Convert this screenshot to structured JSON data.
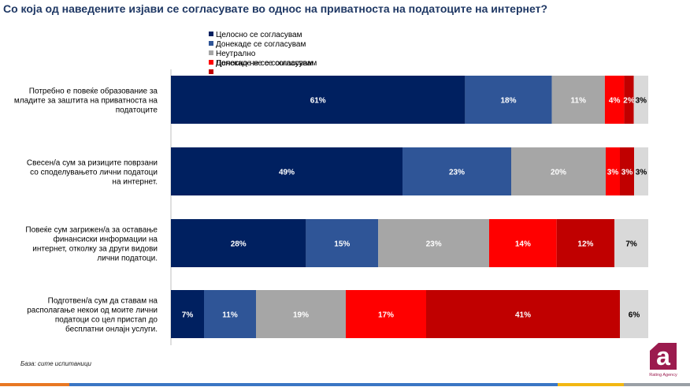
{
  "title": "Со која од наведените изјави се согласувате во однос на приватноста на податоците на интернет?",
  "footnote": "База: сите испитаници",
  "logo": {
    "brand": "Rating Agency",
    "colors": [
      "#9b1b4e",
      "#ffffff"
    ]
  },
  "chart_data": {
    "type": "bar",
    "orientation": "horizontal-stacked-100",
    "categories": [
      "Потребно е повеќе образование за младите за заштита на приватноста на податоците",
      "Свесен/а сум за ризиците поврзани со споделувањето лични податоци на интернет.",
      "Повеќе сум загрижен/а за оставање финансиски информации на интернет, отколку за други видови лични податоци.",
      "Подготвен/а сум да ставам на располагање некои од моите лични податоци со цел пристап до бесплатни онлајн услуги."
    ],
    "category_lines": [
      [
        "Потребно е повеќе образование за",
        "младите за заштита на приватноста на",
        "податоците"
      ],
      [
        "Свесен/а сум за ризиците поврзани",
        "со споделувањето лични податоци",
        "на интернет."
      ],
      [
        "Повеќе сум загрижен/а за оставање",
        "финансиски информации на",
        "интернет, отколку за други видови",
        "лични податоци."
      ],
      [
        "Подготвен/а сум да ставам на",
        "располагање  некои од моите лични",
        "податоци со цел пристап до",
        "бесплатни онлајн услуги."
      ]
    ],
    "series": [
      {
        "name": "Целосно се согласувам",
        "color": "#002060",
        "label_color": "#ffffff",
        "values": [
          61,
          49,
          28,
          7
        ]
      },
      {
        "name": "Донекаде се согласувам",
        "color": "#2f5597",
        "label_color": "#ffffff",
        "values": [
          18,
          23,
          15,
          11
        ]
      },
      {
        "name": "Неутрално",
        "color": "#a6a6a6",
        "label_color": "#ffffff",
        "values": [
          11,
          20,
          23,
          19
        ]
      },
      {
        "name": "Донекаде не се согласувам",
        "color": "#ff0000",
        "label_color": "#ffffff",
        "values": [
          4,
          3,
          14,
          17
        ]
      },
      {
        "name": "",
        "color": "#c00000",
        "label_color": "#ffffff",
        "values": [
          2,
          3,
          12,
          41
        ]
      },
      {
        "name": "",
        "color": "#d9d9d9",
        "label_color": "#000000",
        "values": [
          3,
          3,
          7,
          6
        ]
      }
    ],
    "legend_overlap_text": "Целосно не се согласувам",
    "value_suffix": "%",
    "xlim": [
      0,
      100
    ],
    "grid": false,
    "legend": "top"
  }
}
